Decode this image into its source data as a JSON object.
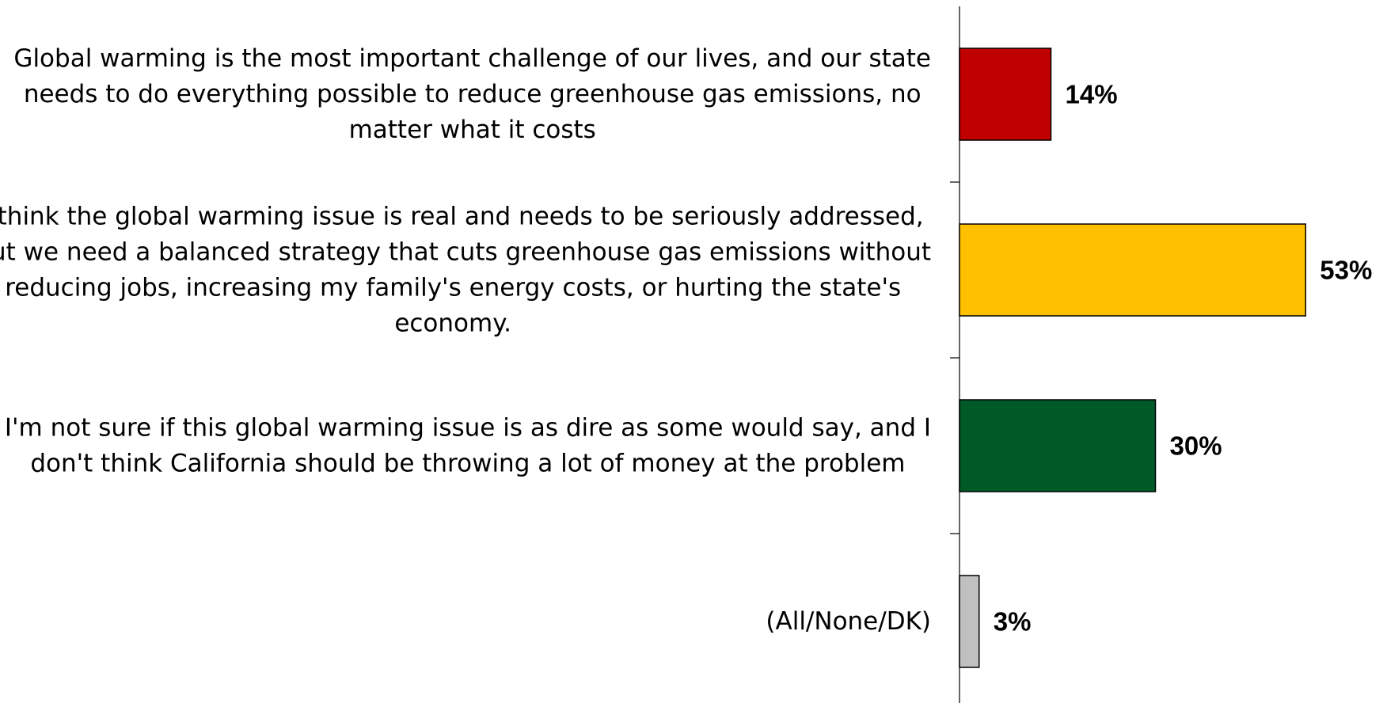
{
  "chart_data": {
    "type": "bar",
    "orientation": "horizontal",
    "categories": [
      "Global warming is the most important challenge of our lives, and our state needs to do everything possible to reduce greenhouse gas emissions, no matter what it costs",
      "I think the global warming issue is real and needs to be seriously addressed, but we need a balanced strategy that cuts greenhouse gas emissions without reducing jobs, increasing my family's energy costs, or hurting the state's economy.",
      "I'm not sure if this global warming issue is as dire as some would say, and I don't think California should be throwing a lot of money at the problem",
      "(All/None/DK)"
    ],
    "category_lines": [
      [
        "Global warming is the most important challenge of our lives, and our state",
        "needs to do everything possible to reduce greenhouse gas emissions, no",
        "matter what it costs"
      ],
      [
        "I think the global warming issue is real and needs to be seriously addressed,",
        "but we need a balanced strategy that cuts greenhouse gas emissions without",
        "reducing jobs, increasing my family's energy costs, or hurting the state's",
        "economy."
      ],
      [
        "I'm not sure if this global warming issue is as dire as some would say, and I",
        "don't think California should be throwing a lot of money at the problem"
      ],
      [
        "(All/None/DK)"
      ]
    ],
    "values": [
      14,
      53,
      30,
      3
    ],
    "value_labels": [
      "14%",
      "53%",
      "30%",
      "3%"
    ],
    "colors": [
      "#C00000",
      "#FFC000",
      "#005A28",
      "#C0C0C0"
    ],
    "xlim": [
      0,
      60
    ],
    "title": "",
    "xlabel": "",
    "ylabel": "",
    "grid": false,
    "legend": "none"
  }
}
